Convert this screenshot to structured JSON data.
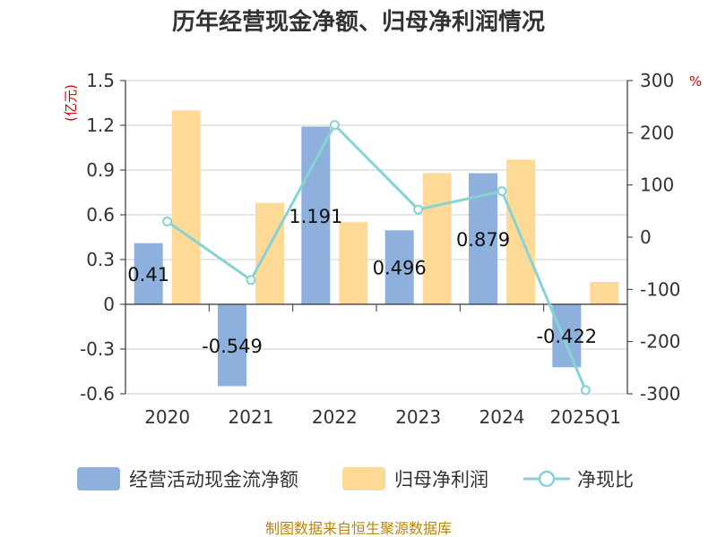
{
  "chart_data": {
    "type": "bar",
    "title": "历年经营现金净额、归母净利润情况",
    "categories": [
      "2020",
      "2021",
      "2022",
      "2023",
      "2024",
      "2025Q1"
    ],
    "left_axis": {
      "unit": "(亿元)",
      "range": [
        -0.6,
        1.5
      ],
      "ticks": [
        1.5,
        1.2,
        0.9,
        0.6,
        0.3,
        0,
        -0.3,
        -0.6
      ],
      "tick_labels": [
        "1.5",
        "1.2",
        "0.9",
        "0.6",
        "0.3",
        "0",
        "-0.3",
        "-0.6"
      ]
    },
    "right_axis": {
      "unit": "%",
      "range": [
        -300,
        300
      ],
      "ticks": [
        300,
        200,
        100,
        0,
        -100,
        -200,
        -300
      ],
      "tick_labels": [
        "300",
        "200",
        "100",
        "0",
        "-100",
        "-200",
        "-300"
      ]
    },
    "grid": true,
    "legend_position": "bottom",
    "series": [
      {
        "name": "经营活动现金流净额",
        "type": "bar",
        "axis": "left",
        "color": "#8eb0dc",
        "values": [
          0.41,
          -0.549,
          1.191,
          0.496,
          0.879,
          -0.422
        ],
        "labels": [
          "0.41",
          "-0.549",
          "1.191",
          "0.496",
          "0.879",
          "-0.422"
        ]
      },
      {
        "name": "归母净利润",
        "type": "bar",
        "axis": "left",
        "color": "#ffd996",
        "values": [
          1.3,
          0.68,
          0.55,
          0.88,
          0.97,
          0.15
        ]
      },
      {
        "name": "净现比",
        "type": "line",
        "axis": "right",
        "color": "#86d3d6",
        "values": [
          30,
          -82,
          215,
          53,
          88,
          -293
        ]
      }
    ],
    "source": "制图数据来自恒生聚源数据库"
  }
}
